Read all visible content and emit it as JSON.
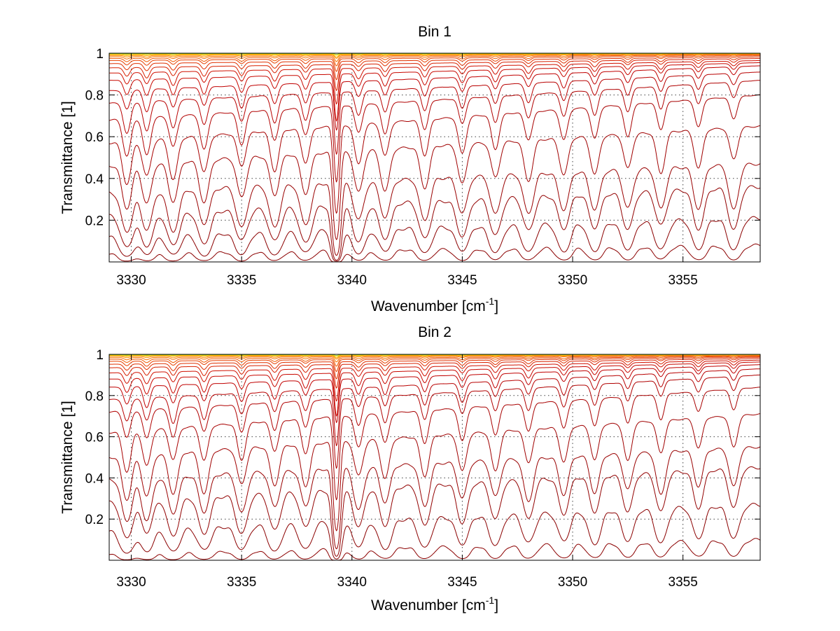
{
  "chart_data": [
    {
      "type": "line",
      "title": "Bin 1",
      "xlabel": "Wavenumber [cm",
      "xlabel_sup": "-1",
      "xlabel_end": "]",
      "ylabel": "Transmittance [1]",
      "xlim": [
        3329,
        3358.5
      ],
      "ylim": [
        0,
        1
      ],
      "xticks": [
        3330,
        3335,
        3340,
        3345,
        3350,
        3355
      ],
      "xtick_labels": [
        "3330",
        "3335",
        "3340",
        "3345",
        "3350",
        "3355"
      ],
      "yticks": [
        0.2,
        0.4,
        0.6,
        0.8,
        1
      ],
      "ytick_labels": [
        "0.2",
        "0.4",
        "0.6",
        "0.8",
        "1"
      ],
      "grid": true,
      "legend": "none",
      "line_positions": [
        3329.8,
        3330.7,
        3331.9,
        3333.3,
        3335.0,
        3336.5,
        3337.9,
        3339.3,
        3340.3,
        3341.5,
        3343.3,
        3345.0,
        3346.5,
        3348.0,
        3349.6,
        3351.0,
        3352.5,
        3354.0,
        3355.7,
        3357.3
      ],
      "series_base_levels": [
        0.04,
        0.12,
        0.22,
        0.33,
        0.46,
        0.57,
        0.68,
        0.76,
        0.82,
        0.87,
        0.905,
        0.93,
        0.95,
        0.965,
        0.975,
        0.983,
        0.989,
        0.993,
        0.996,
        0.998
      ],
      "series_right_levels": [
        0.08,
        0.21,
        0.36,
        0.47,
        0.65,
        0.8,
        0.87,
        0.91,
        0.94,
        0.955,
        0.965,
        0.975,
        0.982,
        0.988,
        0.992,
        0.995,
        0.997,
        0.998,
        0.999,
        0.9995
      ],
      "series_colors": [
        "#8b0000",
        "#8b0000",
        "#920000",
        "#990000",
        "#a00000",
        "#a80000",
        "#b00000",
        "#b80000",
        "#c00000",
        "#c80800",
        "#d01000",
        "#d82000",
        "#e03000",
        "#e84000",
        "#f05800",
        "#f87000",
        "#ff8c00",
        "#ffa800",
        "#ffd000",
        "#9acd32"
      ]
    },
    {
      "type": "line",
      "title": "Bin 2",
      "xlabel": "Wavenumber [cm",
      "xlabel_sup": "-1",
      "xlabel_end": "]",
      "ylabel": "Transmittance [1]",
      "xlim": [
        3329,
        3358.5
      ],
      "ylim": [
        0,
        1
      ],
      "xticks": [
        3330,
        3335,
        3340,
        3345,
        3350,
        3355
      ],
      "xtick_labels": [
        "3330",
        "3335",
        "3340",
        "3345",
        "3350",
        "3355"
      ],
      "yticks": [
        0.2,
        0.4,
        0.6,
        0.8,
        1
      ],
      "ytick_labels": [
        "0.2",
        "0.4",
        "0.6",
        "0.8",
        "1"
      ],
      "grid": true,
      "legend": "none",
      "line_positions": [
        3329.8,
        3330.7,
        3331.9,
        3333.3,
        3335.0,
        3336.5,
        3337.9,
        3339.3,
        3340.3,
        3341.5,
        3343.3,
        3345.0,
        3346.5,
        3348.0,
        3349.6,
        3351.0,
        3352.5,
        3354.0,
        3355.7,
        3357.3
      ],
      "series_base_levels": [
        0.03,
        0.14,
        0.28,
        0.39,
        0.5,
        0.62,
        0.72,
        0.78,
        0.84,
        0.88,
        0.91,
        0.935,
        0.952,
        0.966,
        0.976,
        0.984,
        0.99,
        0.994,
        0.996,
        0.998
      ],
      "series_right_levels": [
        0.1,
        0.27,
        0.45,
        0.55,
        0.71,
        0.84,
        0.9,
        0.93,
        0.95,
        0.963,
        0.972,
        0.98,
        0.986,
        0.99,
        0.993,
        0.996,
        0.997,
        0.998,
        0.999,
        0.9995
      ],
      "series_colors": [
        "#8b0000",
        "#8b0000",
        "#920000",
        "#990000",
        "#a00000",
        "#a80000",
        "#b00000",
        "#b80000",
        "#c00000",
        "#c80800",
        "#d01000",
        "#d82000",
        "#e03000",
        "#e84000",
        "#f05800",
        "#f87000",
        "#ff8c00",
        "#ffa800",
        "#ffd000",
        "#9acd32"
      ]
    }
  ]
}
